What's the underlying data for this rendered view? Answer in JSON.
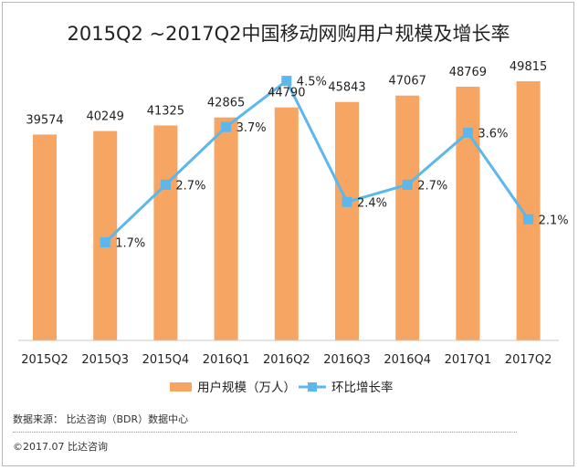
{
  "chart_data": {
    "type": "bar",
    "title": "2015Q2 ~2017Q2中国移动网购用户规模及增长率",
    "categories": [
      "2015Q2",
      "2015Q3",
      "2015Q4",
      "2016Q1",
      "2016Q2",
      "2016Q3",
      "2016Q4",
      "2017Q1",
      "2017Q2"
    ],
    "series": [
      {
        "name": "用户规模（万人）",
        "kind": "bar",
        "color": "#F7A562",
        "values": [
          39574,
          40249,
          41325,
          42865,
          44790,
          45843,
          47067,
          48769,
          49815
        ],
        "labels": [
          "39574",
          "40249",
          "41325",
          "42865",
          "44790",
          "45843",
          "47067",
          "48769",
          "49815"
        ]
      },
      {
        "name": "环比增长率",
        "kind": "line",
        "color": "#5BB7EC",
        "values": [
          null,
          1.7,
          2.7,
          3.7,
          4.5,
          2.4,
          2.7,
          3.6,
          2.1
        ],
        "labels": [
          "",
          "1.7%",
          "2.7%",
          "3.7%",
          "4.5%",
          "2.4%",
          "2.7%",
          "3.6%",
          "2.1%"
        ]
      }
    ],
    "ylim": [
      0,
      60000
    ],
    "y2lim": [
      0,
      5
    ],
    "grid": false,
    "legend": "bottom"
  },
  "footer": {
    "source": "数据来源： 比达咨询（BDR）数据中心",
    "copyright": "©2017.07  比达咨询"
  }
}
